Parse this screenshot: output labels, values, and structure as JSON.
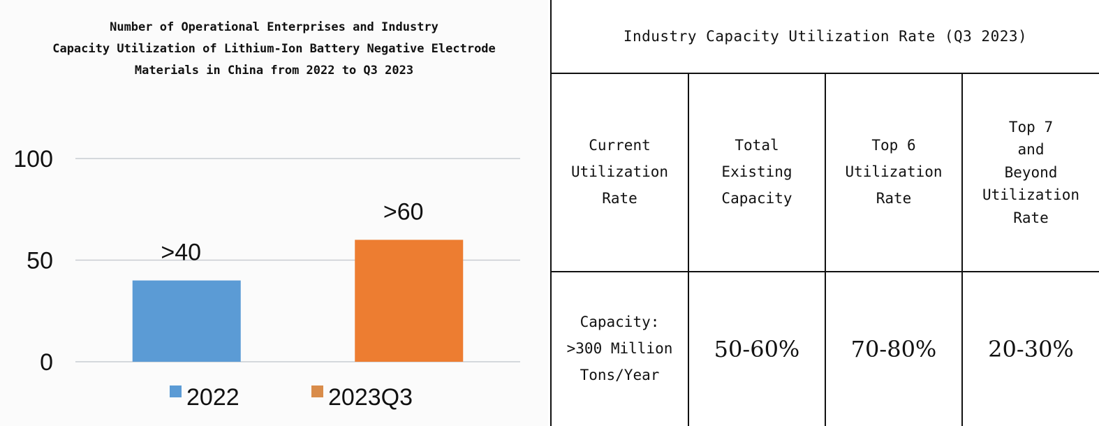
{
  "chart_data": {
    "type": "bar",
    "title": "Number of Operational Enterprises and Industry\nCapacity Utilization of Lithium-Ion Battery Negative Electrode\nMaterials in China from 2022 to Q3 2023",
    "categories": [
      "2022",
      "2023Q3"
    ],
    "values": [
      40,
      60
    ],
    "data_labels": [
      ">40",
      ">60"
    ],
    "ylim": [
      0,
      100
    ],
    "yticks": [
      "0",
      "50",
      "100"
    ],
    "grid": true,
    "legend": {
      "position": "bottom",
      "entries": [
        "2022",
        "2023Q3"
      ]
    },
    "colors": [
      "#5b9bd5",
      "#ed7d31"
    ],
    "legend_colors": [
      "#5b9bd5",
      "#d98c4a"
    ]
  },
  "table": {
    "title": "Industry Capacity Utilization Rate (Q3 2023)",
    "headers": [
      [
        "Current",
        "Utilization",
        "Rate"
      ],
      [
        "Total",
        "Existing",
        "Capacity"
      ],
      [
        "Top 6",
        "Utilization",
        "Rate"
      ],
      [
        "Top 7",
        "and",
        "Beyond",
        "Utilization",
        "Rate"
      ]
    ],
    "row": [
      [
        "Capacity:",
        ">300 Million",
        "Tons/Year"
      ],
      [
        "50-",
        "60%"
      ],
      [
        "70-80%"
      ],
      [
        "20-30%"
      ]
    ]
  }
}
